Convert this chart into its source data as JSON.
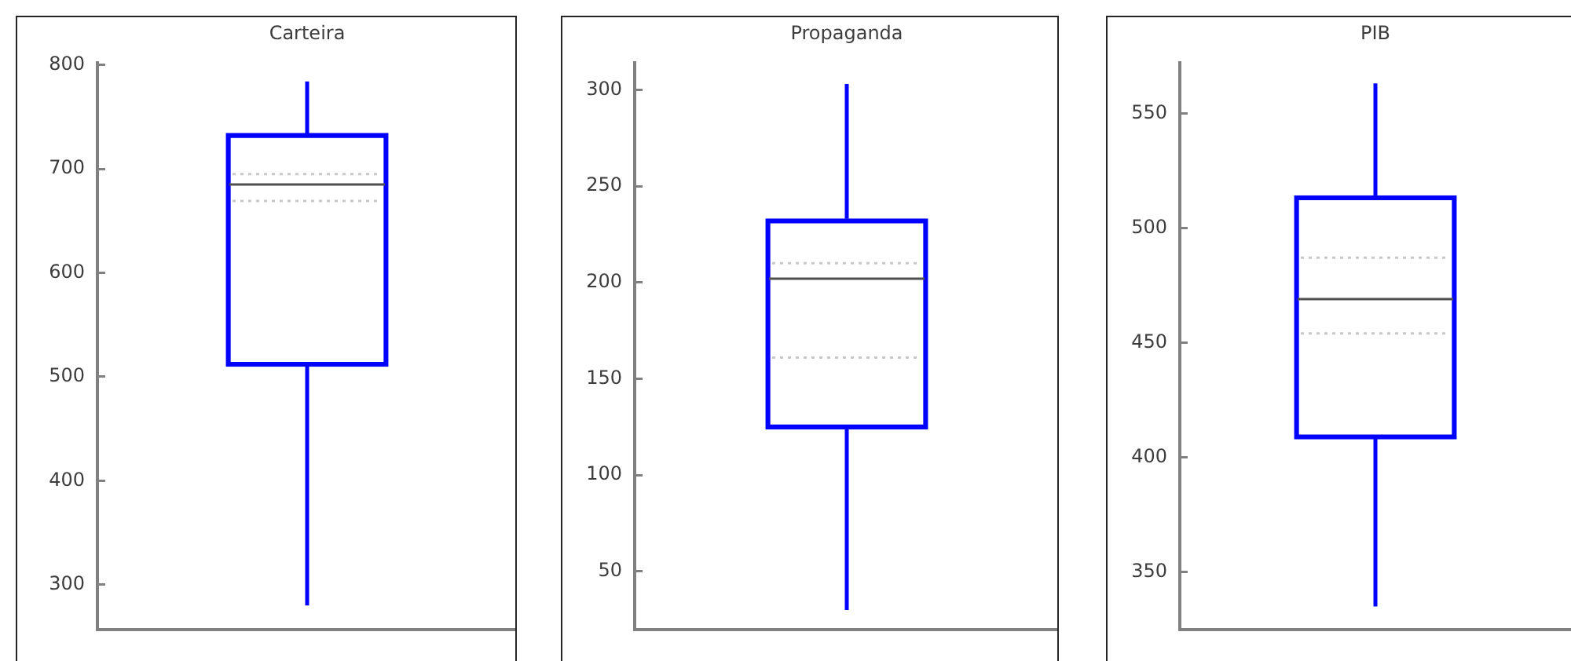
{
  "chart_data": [
    {
      "type": "box",
      "title": "Carteira",
      "categories": [
        null
      ],
      "color": "#0000ff",
      "boxes": [
        {
          "low": 280,
          "q1": 510,
          "median": 685,
          "q3": 734,
          "high": 784
        }
      ],
      "ylim": [
        257,
        802
      ],
      "yticks": [
        300,
        400,
        500,
        600,
        700,
        800
      ],
      "ref_lines": [
        {
          "axis": "y",
          "value": 695,
          "color": "#c8c8c8",
          "line_style": "dotted"
        },
        {
          "axis": "y",
          "value": 669,
          "color": "#c8c8c8",
          "line_style": "dotted"
        }
      ],
      "tick_labels": "y"
    },
    {
      "type": "box",
      "title": "Propaganda",
      "categories": [
        null
      ],
      "color": "#0000ff",
      "boxes": [
        {
          "low": 30,
          "q1": 124,
          "median": 202,
          "q3": 233,
          "high": 303
        }
      ],
      "ylim": [
        20,
        314
      ],
      "yticks": [
        50,
        100,
        150,
        200,
        250,
        300
      ],
      "ref_lines": [
        {
          "axis": "y",
          "value": 210,
          "color": "#c8c8c8",
          "line_style": "dotted"
        },
        {
          "axis": "y",
          "value": 161,
          "color": "#c8c8c8",
          "line_style": "dotted"
        }
      ],
      "tick_labels": "y"
    },
    {
      "type": "box",
      "title": "PIB",
      "categories": [
        null
      ],
      "color": "#0000ff",
      "boxes": [
        {
          "low": 335,
          "q1": 408,
          "median": 469,
          "q3": 514,
          "high": 563
        }
      ],
      "ylim": [
        325,
        572
      ],
      "yticks": [
        350,
        400,
        450,
        500,
        550
      ],
      "ref_lines": [
        {
          "axis": "y",
          "value": 487,
          "color": "#c8c8c8",
          "line_style": "dotted"
        },
        {
          "axis": "y",
          "value": 454,
          "color": "#c8c8c8",
          "line_style": "dotted"
        }
      ],
      "tick_labels": "y"
    }
  ]
}
